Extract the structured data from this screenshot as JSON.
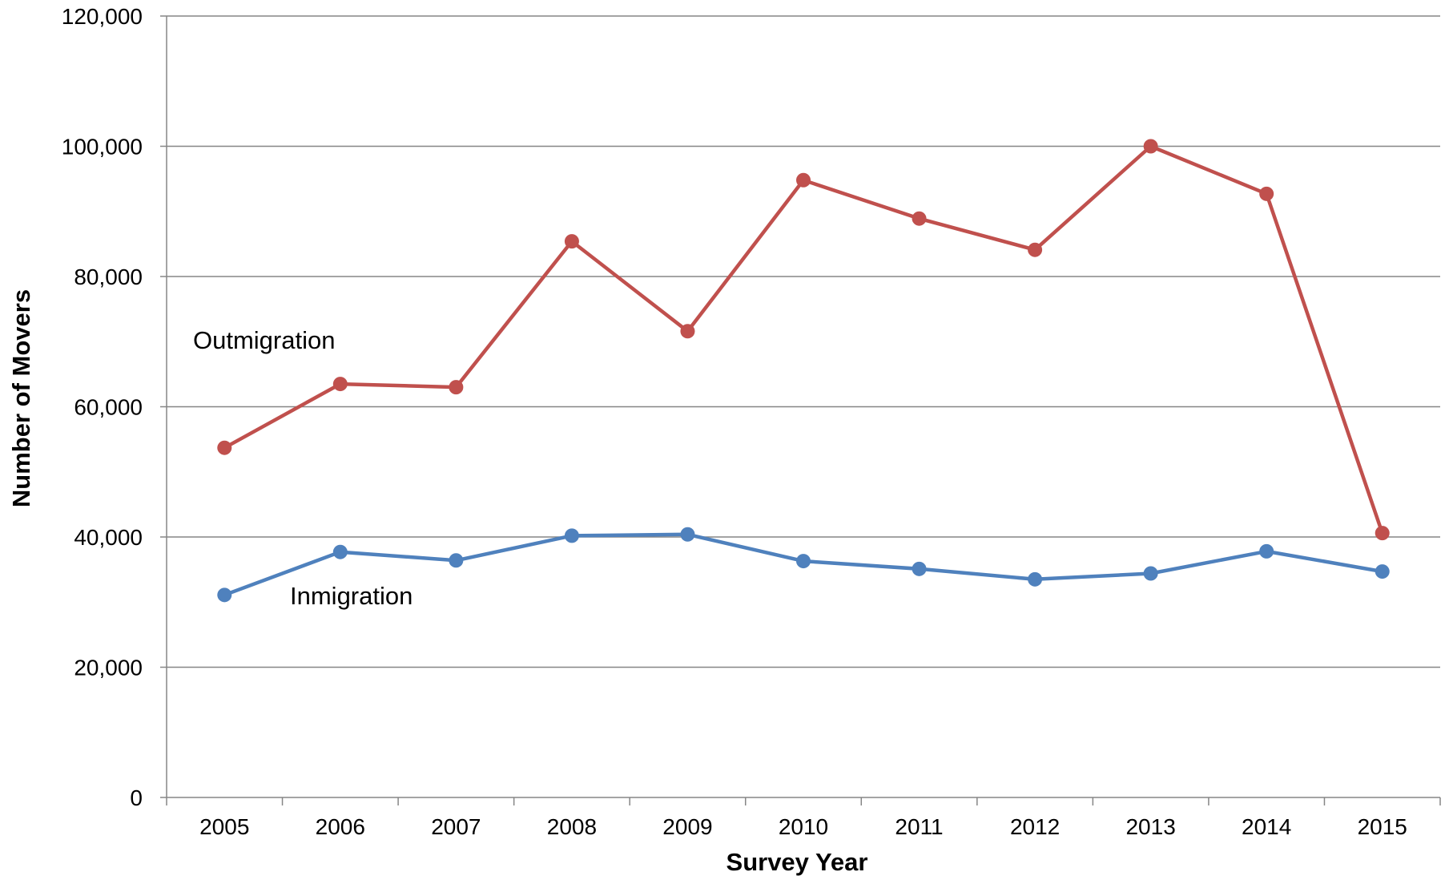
{
  "chart_data": {
    "type": "line",
    "title": "",
    "xlabel": "Survey Year",
    "ylabel": "Number of Movers",
    "x": [
      "2005",
      "2006",
      "2007",
      "2008",
      "2009",
      "2010",
      "2011",
      "2012",
      "2013",
      "2014",
      "2015"
    ],
    "ylim": [
      0,
      120000
    ],
    "yticks": [
      0,
      20000,
      40000,
      60000,
      80000,
      100000,
      120000
    ],
    "ytick_labels": [
      "0",
      "20,000",
      "40,000",
      "60,000",
      "80,000",
      "100,000",
      "120,000"
    ],
    "grid": true,
    "legend": "none",
    "series": [
      {
        "name": "Outmigration",
        "color": "#C0504D",
        "values": [
          53700,
          63500,
          63000,
          85400,
          71600,
          94800,
          88900,
          84100,
          100000,
          92700,
          40600
        ]
      },
      {
        "name": "Inmigration",
        "color": "#4F81BD",
        "values": [
          31100,
          37700,
          36400,
          40200,
          40400,
          36300,
          35100,
          33500,
          34400,
          37800,
          34700
        ]
      }
    ],
    "annotations": [
      {
        "text": "Outmigration",
        "series": "Outmigration"
      },
      {
        "text": "Inmigration",
        "series": "Inmigration"
      }
    ],
    "colors": {
      "gridline": "#868686",
      "axis": "#868686"
    }
  }
}
